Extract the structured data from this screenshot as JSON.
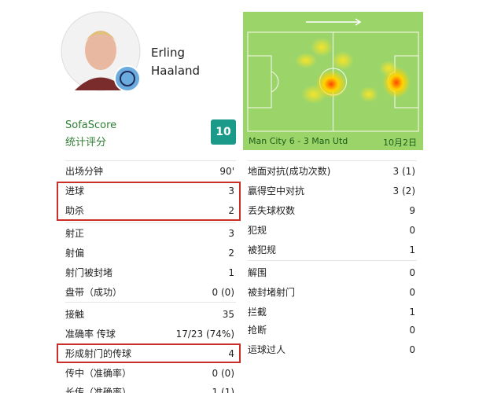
{
  "player": {
    "first_name": "Erling",
    "last_name": "Haaland"
  },
  "rating": {
    "source": "SofaScore",
    "caption": "统计评分",
    "value": "10"
  },
  "match": {
    "score": "Man City 6 - 3 Man Utd",
    "date": "10月2日"
  },
  "left_stats": [
    [
      "出场分钟",
      "90'"
    ],
    [
      "进球",
      "3"
    ],
    [
      "助杀",
      "2"
    ],
    [
      "射正",
      "3"
    ],
    [
      "射偏",
      "2"
    ],
    [
      "射门被封堵",
      "1"
    ],
    [
      "盘带（成功）",
      "0 (0)"
    ],
    [
      "接触",
      "35"
    ],
    [
      "准确率 传球",
      "17/23 (74%)"
    ],
    [
      "形成射门的传球",
      "4"
    ],
    [
      "传中（准确率）",
      "0 (0)"
    ],
    [
      "长传（准确率）",
      "1 (1)"
    ]
  ],
  "right_stats": [
    [
      "地面对抗(成功次数)",
      "3 (1)"
    ],
    [
      "赢得空中对抗",
      "3 (2)"
    ],
    [
      "丢失球权数",
      "9"
    ],
    [
      "犯规",
      "0"
    ],
    [
      "被犯规",
      "1"
    ],
    [
      "解围",
      "0"
    ],
    [
      "被封堵射门",
      "0"
    ],
    [
      "拦截",
      "1"
    ],
    [
      "抢断",
      "0"
    ],
    [
      "运球过人",
      "0"
    ]
  ]
}
